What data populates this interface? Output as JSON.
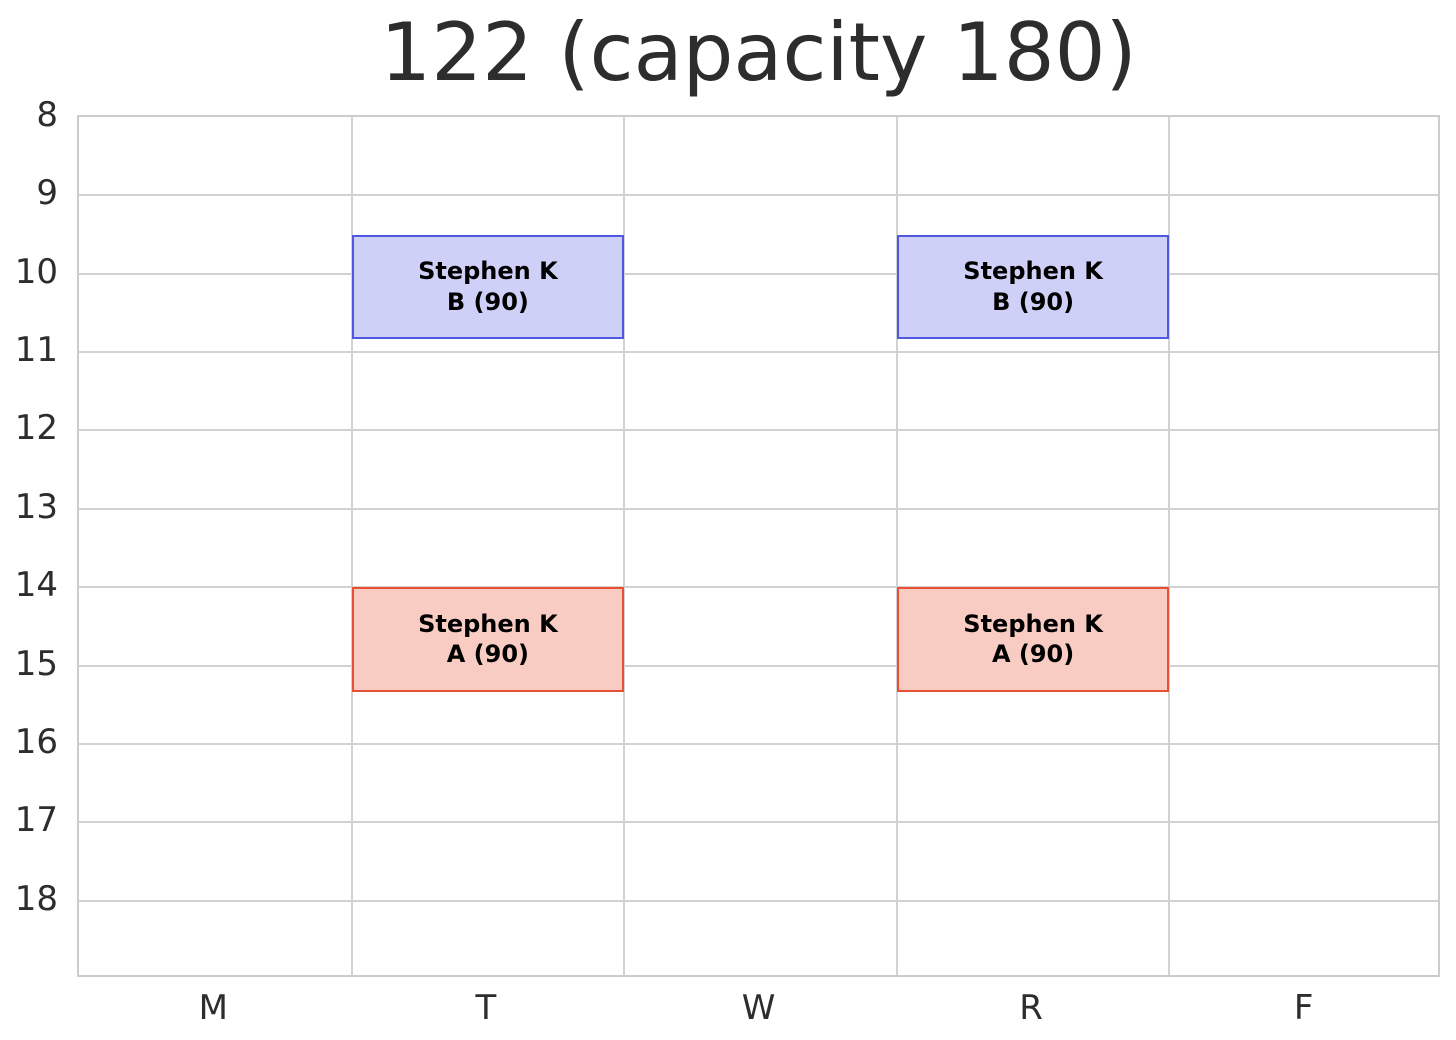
{
  "title": "122 (capacity 180)",
  "chart_data": {
    "type": "schedule",
    "title": "122 (capacity 180)",
    "room": "122",
    "room_capacity": 180,
    "x_axis": {
      "categories": [
        "M",
        "T",
        "W",
        "R",
        "F"
      ]
    },
    "y_axis": {
      "tick_labels": [
        "8",
        "9",
        "10",
        "11",
        "12",
        "13",
        "14",
        "15",
        "16",
        "17",
        "18"
      ],
      "tick_values": [
        8,
        9,
        10,
        11,
        12,
        13,
        14,
        15,
        16,
        17,
        18
      ],
      "range": [
        8,
        19
      ],
      "unit": "hour_of_day"
    },
    "grid": true,
    "legend": "none",
    "blocks": [
      {
        "day": "T",
        "day_index": 1,
        "start_hour": 9.5,
        "end_hour": 10.833,
        "label_lines": [
          "Stephen K",
          "B (90)"
        ],
        "instructor": "Stephen K",
        "section": "B",
        "seats": 90,
        "color_key": "blue"
      },
      {
        "day": "R",
        "day_index": 3,
        "start_hour": 9.5,
        "end_hour": 10.833,
        "label_lines": [
          "Stephen K",
          "B (90)"
        ],
        "instructor": "Stephen K",
        "section": "B",
        "seats": 90,
        "color_key": "blue"
      },
      {
        "day": "T",
        "day_index": 1,
        "start_hour": 14.0,
        "end_hour": 15.333,
        "label_lines": [
          "Stephen K",
          "A (90)"
        ],
        "instructor": "Stephen K",
        "section": "A",
        "seats": 90,
        "color_key": "red"
      },
      {
        "day": "R",
        "day_index": 3,
        "start_hour": 14.0,
        "end_hour": 15.333,
        "label_lines": [
          "Stephen K",
          "A (90)"
        ],
        "instructor": "Stephen K",
        "section": "A",
        "seats": 90,
        "color_key": "red"
      }
    ],
    "colors": {
      "blue": {
        "fill": "#cfd0f7",
        "border": "#5158e0"
      },
      "red": {
        "fill": "#f8ccc2",
        "border": "#e84f33"
      },
      "gridline": "#d2d2d2",
      "frame": "#cccccc",
      "text": "#2d2d2d",
      "block_text": "#000000"
    }
  }
}
